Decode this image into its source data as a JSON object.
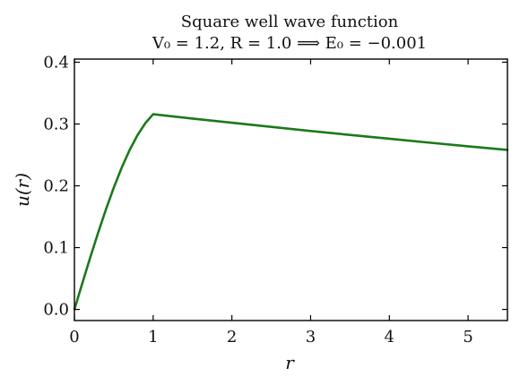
{
  "chart_data": {
    "type": "line",
    "title": "Square well wave function",
    "subtitle": "V₀ = 1.2,  R = 1.0  ⟹  E₀ = −0.001",
    "xlabel": "r",
    "ylabel": "u(r)",
    "xlim": [
      0,
      5.5
    ],
    "ylim": [
      -0.018,
      0.405
    ],
    "grid": false,
    "legend": "none",
    "x_ticks": [
      0,
      1,
      2,
      3,
      4,
      5
    ],
    "x_tick_labels": [
      "0",
      "1",
      "2",
      "3",
      "4",
      "5"
    ],
    "y_ticks": [
      0.0,
      0.1,
      0.2,
      0.3,
      0.4
    ],
    "y_tick_labels": [
      "0.0",
      "0.1",
      "0.2",
      "0.3",
      "0.4"
    ],
    "series": [
      {
        "color": "#1a7a1a",
        "x": [
          0,
          0.1,
          0.2,
          0.3,
          0.4,
          0.5,
          0.6,
          0.7,
          0.8,
          0.9,
          1.0,
          1.5,
          2.0,
          2.5,
          3.0,
          3.5,
          4.0,
          4.5,
          5.0,
          5.5
        ],
        "y": [
          0.0,
          0.0421,
          0.0835,
          0.1236,
          0.1616,
          0.197,
          0.2292,
          0.2576,
          0.2817,
          0.3012,
          0.3158,
          0.3088,
          0.302,
          0.2953,
          0.2887,
          0.2823,
          0.2761,
          0.2699,
          0.2639,
          0.2581
        ]
      }
    ]
  }
}
